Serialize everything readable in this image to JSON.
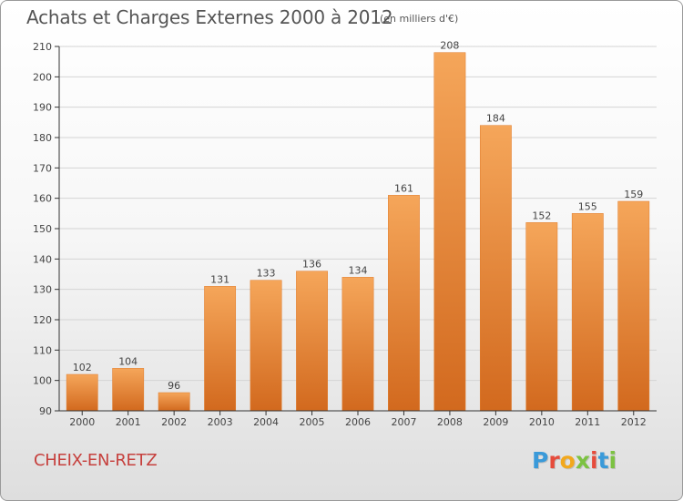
{
  "header": {
    "title": "Achats et Charges Externes 2000 à 2012",
    "unit_note": "(en milliers d'€)"
  },
  "footer": {
    "place": "CHEIX-EN-RETZ",
    "logo_text": "Proxiti",
    "logo_colors": [
      "#3a9ad9",
      "#e64b3b",
      "#f2a81d",
      "#7cc242",
      "#e64b3b",
      "#3a9ad9",
      "#7cc242"
    ]
  },
  "chart_data": {
    "type": "bar",
    "title": "Achats et Charges Externes 2000 à 2012",
    "subtitle": "(en milliers d'€)",
    "categories": [
      "2000",
      "2001",
      "2002",
      "2003",
      "2004",
      "2005",
      "2006",
      "2007",
      "2008",
      "2009",
      "2010",
      "2011",
      "2012"
    ],
    "values": [
      102,
      104,
      96,
      131,
      133,
      136,
      134,
      161,
      208,
      184,
      152,
      155,
      159
    ],
    "ylim": [
      90,
      210
    ],
    "yticks": [
      90,
      100,
      110,
      120,
      130,
      140,
      150,
      160,
      170,
      180,
      190,
      200,
      210
    ],
    "grid": true,
    "legend": false,
    "colors": {
      "bar_top": "#f5a65a",
      "bar_bottom": "#d2691e",
      "bar_stroke": "#e07b2a",
      "grid": "#d4d4d4",
      "axis": "#333333",
      "label": "#444444"
    }
  }
}
